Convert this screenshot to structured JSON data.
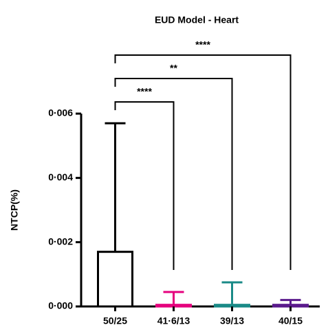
{
  "chart_data": {
    "type": "bar",
    "title": "EUD Model - Heart",
    "y_label": "NTCP(%)",
    "categories": [
      "50/25",
      "41·6/13",
      "39/13",
      "40/15"
    ],
    "series": [
      {
        "values": [
          0.0017,
          5e-05,
          5e-05,
          5e-05
        ],
        "errors": [
          0.004,
          0.0004,
          0.0007,
          0.00015
        ],
        "colors": [
          "#000000",
          "#e5007d",
          "#1a8a87",
          "#5a1a8c"
        ]
      }
    ],
    "ylim": [
      0,
      0.006
    ],
    "yticks": [
      {
        "value": 0,
        "label": "0·000"
      },
      {
        "value": 0.002,
        "label": "0·002"
      },
      {
        "value": 0.004,
        "label": "0·004"
      },
      {
        "value": 0.006,
        "label": "0·006"
      }
    ],
    "significance": [
      "****",
      "**",
      "****"
    ]
  }
}
